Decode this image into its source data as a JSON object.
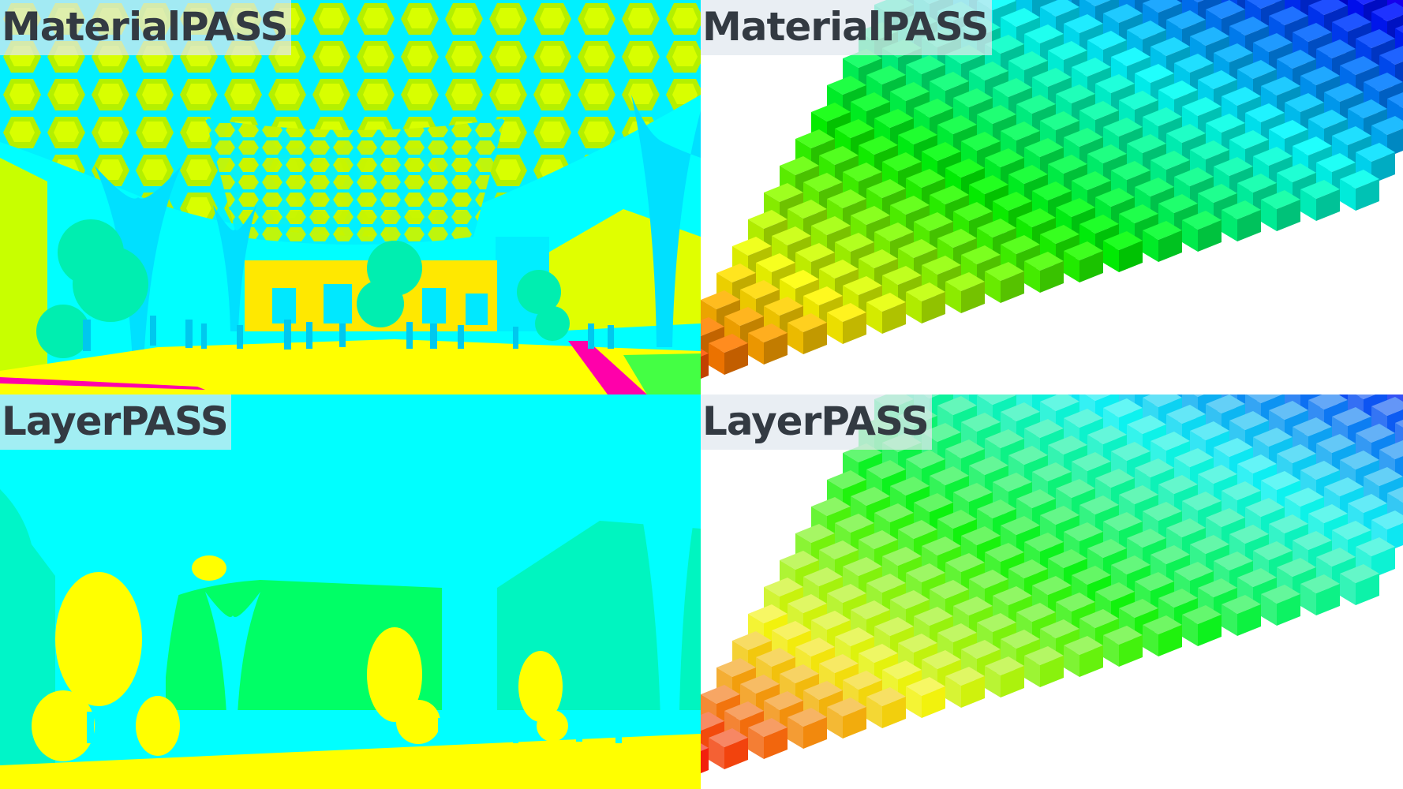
{
  "panels": {
    "top_left": {
      "label": "MaterialPASS",
      "scene": "pavilion-canopy-material"
    },
    "top_right": {
      "label": "MaterialPASS",
      "scene": "cube-grid-material"
    },
    "bottom_left": {
      "label": "LayerPASS",
      "scene": "pavilion-canopy-layer"
    },
    "bottom_right": {
      "label": "LayerPASS",
      "scene": "cube-grid-layer"
    }
  },
  "colors": {
    "cyan": "#00ffff",
    "yellow": "#ffff00",
    "lime": "#b8ff00",
    "green": "#00ff66",
    "mint": "#00ffc0",
    "magenta": "#ff00aa",
    "white": "#ffffff"
  }
}
